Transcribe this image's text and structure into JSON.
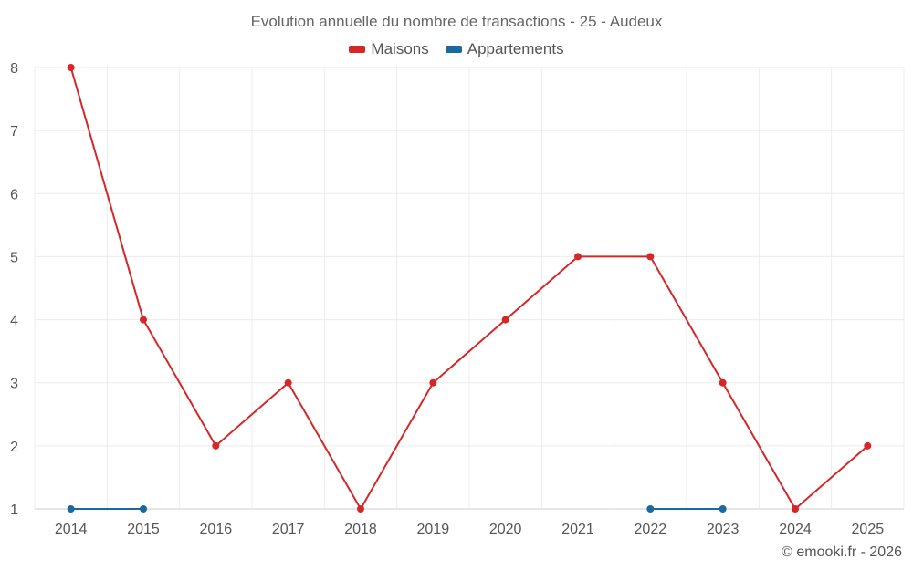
{
  "chart_data": {
    "type": "line",
    "title": "Evolution annuelle du nombre de transactions - 25 - Audeux",
    "x": [
      2014,
      2015,
      2016,
      2017,
      2018,
      2019,
      2020,
      2021,
      2022,
      2023,
      2024,
      2025
    ],
    "series": [
      {
        "name": "Maisons",
        "color": "#d62728",
        "values": [
          8,
          4,
          2,
          3,
          1,
          3,
          4,
          5,
          5,
          3,
          1,
          2
        ]
      },
      {
        "name": "Appartements",
        "color": "#1a6aa0",
        "values": [
          1,
          1,
          null,
          null,
          null,
          null,
          null,
          null,
          1,
          1,
          null,
          null
        ]
      }
    ],
    "yticks": [
      1,
      2,
      3,
      4,
      5,
      6,
      7,
      8
    ],
    "ylim": [
      1,
      8
    ],
    "grid": true,
    "legend_position": "top-center"
  },
  "footer": {
    "credit": "© emooki.fr - 2026"
  }
}
